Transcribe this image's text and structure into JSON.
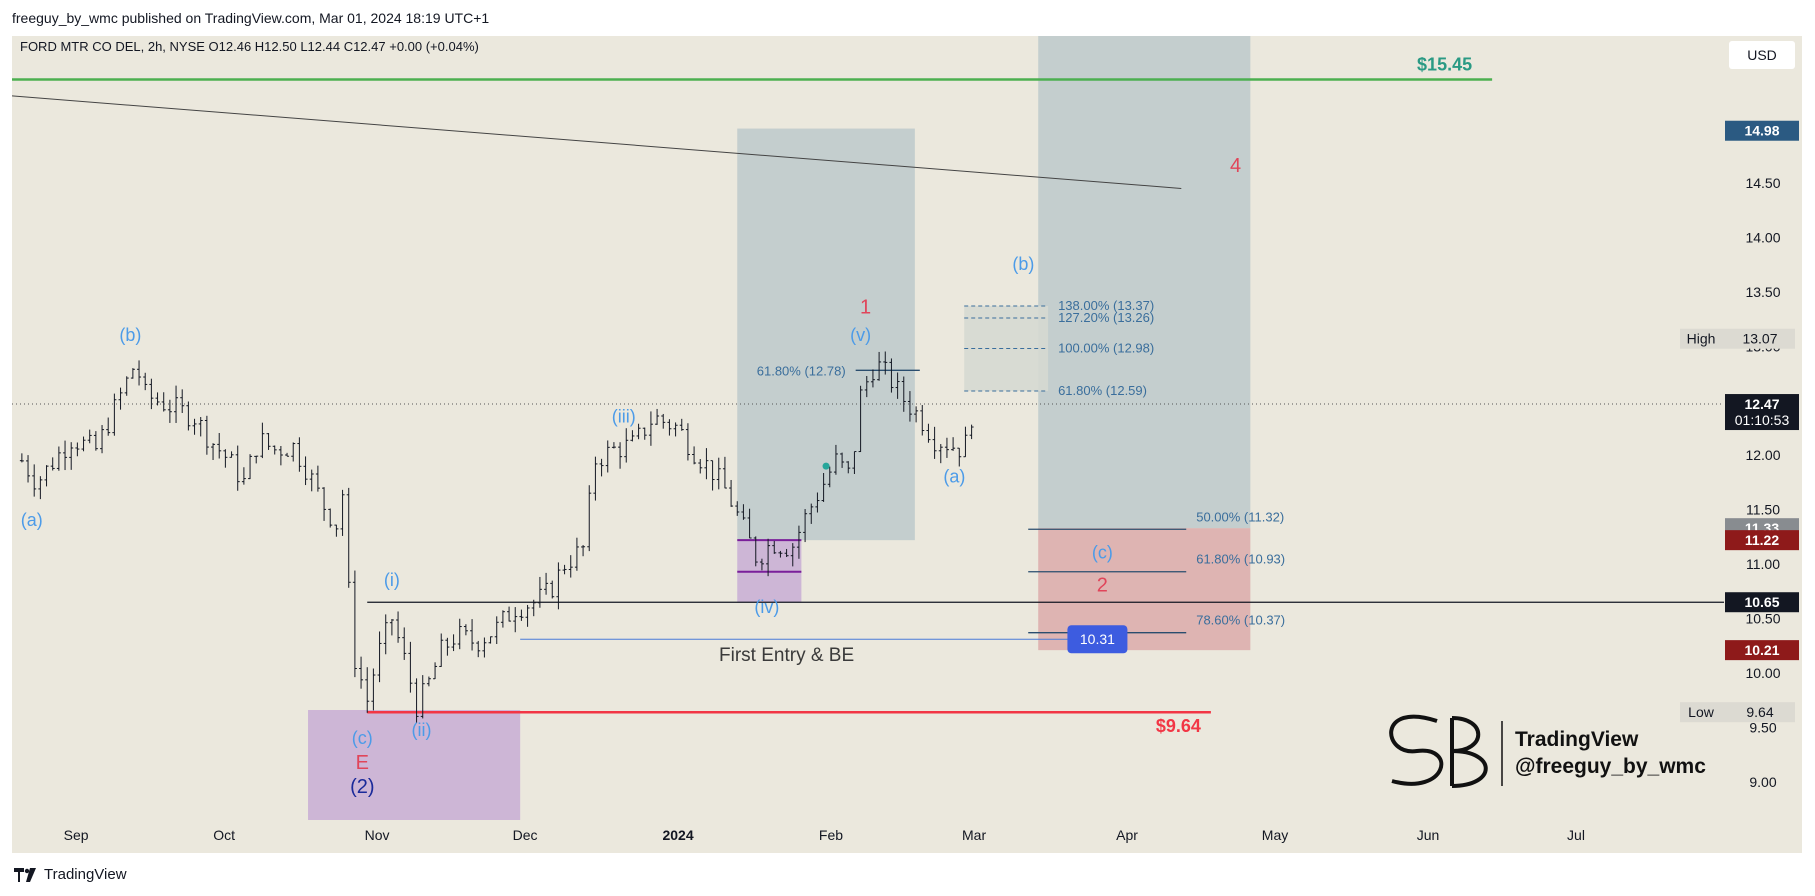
{
  "header": {
    "published": "freeguy_by_wmc published on TradingView.com, Mar 01, 2024 18:19 UTC+1"
  },
  "footer": {
    "brand": "TradingView"
  },
  "watermark": {
    "line1": "TradingView",
    "line2": "@freeguy_by_wmc"
  },
  "colors": {
    "background": "#ebe8dd",
    "candle": "#131722",
    "green_level": "#4caf50",
    "red_level": "#f23645",
    "wave_blue": "#4c9be8",
    "wave_red": "#e0455a",
    "fib_text": "#3a6e9c",
    "zone_grey": "#b7c5c8",
    "zone_purple": "#c5a9d4",
    "zone_red": "#d9a3a3",
    "entry_box": "#3d5ce0",
    "price_badge": "#131722",
    "dark_red_badge": "#8e1a1a",
    "price_badge_blue": "#2b5a82"
  },
  "chart_data": {
    "type": "candlestick",
    "symbol_line": "FORD MTR CO DEL, 2h, NYSE  O12.46  H12.50  L12.44  C12.47  +0.00 (+0.04%)",
    "currency": "USD",
    "x_axis": {
      "labels": [
        "Sep",
        "Oct",
        "Nov",
        "Dec",
        "2024",
        "Feb",
        "Mar",
        "Apr",
        "May",
        "Jun",
        "Jul"
      ],
      "dates": [
        "2023-09-01",
        "2023-10-01",
        "2023-11-01",
        "2023-12-01",
        "2024-01-01",
        "2024-02-01",
        "2024-03-01",
        "2024-04-01",
        "2024-05-01",
        "2024-06-01",
        "2024-07-01"
      ],
      "range": [
        "2023-08-19",
        "2024-07-31"
      ]
    },
    "y_axis": {
      "ticks": [
        "9.00",
        "9.50",
        "10.00",
        "10.50",
        "11.00",
        "11.50",
        "12.00",
        "12.50",
        "13.00",
        "13.50",
        "14.00",
        "14.50"
      ],
      "range": [
        8.65,
        15.85
      ]
    },
    "price_path": [
      [
        "2023-08-21",
        11.95
      ],
      [
        "2023-08-24",
        11.75
      ],
      [
        "2023-08-28",
        11.98
      ],
      [
        "2023-08-31",
        12.15
      ],
      [
        "2023-09-05",
        12.05
      ],
      [
        "2023-09-09",
        12.45
      ],
      [
        "2023-09-13",
        12.85
      ],
      [
        "2023-09-15",
        12.55
      ],
      [
        "2023-09-20",
        12.45
      ],
      [
        "2023-09-25",
        12.35
      ],
      [
        "2023-09-28",
        12.15
      ],
      [
        "2023-10-02",
        11.95
      ],
      [
        "2023-10-05",
        11.75
      ],
      [
        "2023-10-08",
        12.15
      ],
      [
        "2023-10-11",
        12.05
      ],
      [
        "2023-10-15",
        12.08
      ],
      [
        "2023-10-18",
        11.85
      ],
      [
        "2023-10-21",
        11.55
      ],
      [
        "2023-10-24",
        11.35
      ],
      [
        "2023-10-25",
        11.65
      ],
      [
        "2023-10-27",
        10.2
      ],
      [
        "2023-10-30",
        9.75
      ],
      [
        "2023-11-01",
        10.15
      ],
      [
        "2023-11-04",
        10.5
      ],
      [
        "2023-11-07",
        10.05
      ],
      [
        "2023-11-09",
        9.7
      ],
      [
        "2023-11-11",
        9.85
      ],
      [
        "2023-11-14",
        10.2
      ],
      [
        "2023-11-17",
        10.35
      ],
      [
        "2023-11-21",
        10.28
      ],
      [
        "2023-11-25",
        10.4
      ],
      [
        "2023-11-29",
        10.6
      ],
      [
        "2023-12-03",
        10.65
      ],
      [
        "2023-12-06",
        10.75
      ],
      [
        "2023-12-09",
        11.0
      ],
      [
        "2023-12-13",
        11.15
      ],
      [
        "2023-12-15",
        11.95
      ],
      [
        "2023-12-19",
        12.05
      ],
      [
        "2023-12-23",
        12.1
      ],
      [
        "2023-12-27",
        12.35
      ],
      [
        "2024-01-01",
        12.25
      ],
      [
        "2024-01-04",
        12.05
      ],
      [
        "2024-01-08",
        11.85
      ],
      [
        "2024-01-11",
        11.65
      ],
      [
        "2024-01-15",
        11.25
      ],
      [
        "2024-01-17",
        11.05
      ],
      [
        "2024-01-20",
        11.2
      ],
      [
        "2024-01-24",
        11.15
      ],
      [
        "2024-01-27",
        11.45
      ],
      [
        "2024-01-30",
        11.7
      ],
      [
        "2024-02-02",
        11.95
      ],
      [
        "2024-02-05",
        11.8
      ],
      [
        "2024-02-07",
        12.55
      ],
      [
        "2024-02-10",
        12.85
      ],
      [
        "2024-02-13",
        12.7
      ],
      [
        "2024-02-15",
        12.55
      ],
      [
        "2024-02-19",
        12.35
      ],
      [
        "2024-02-22",
        12.15
      ],
      [
        "2024-02-25",
        12.1
      ],
      [
        "2024-02-28",
        12.05
      ],
      [
        "2024-03-01",
        12.47
      ]
    ],
    "levels": [
      {
        "id": "target",
        "price": 15.45,
        "label": "$15.45",
        "color": "green",
        "from": "2023-08-19",
        "to": "2024-06-14"
      },
      {
        "id": "stop",
        "price": 9.64,
        "label": "$9.64",
        "color": "red",
        "from": "2023-10-30",
        "to": "2024-04-18"
      },
      {
        "id": "support",
        "price": 10.65,
        "color": "black",
        "from": "2023-10-30",
        "to": "2024-07-31"
      },
      {
        "id": "current",
        "price": 12.47,
        "color": "dotted",
        "from": "2023-08-19",
        "to": "2024-07-31"
      }
    ],
    "trendline": {
      "from": [
        "2023-08-19",
        15.3
      ],
      "to": [
        "2024-04-12",
        14.45
      ]
    },
    "zones": [
      {
        "id": "low-zone",
        "color": "purple",
        "from": "2023-10-18",
        "to": "2023-11-30",
        "top": 9.66,
        "bottom": 8.65
      },
      {
        "id": "iv-zone",
        "color": "purple",
        "from": "2024-01-13",
        "to": "2024-01-26",
        "top": 11.22,
        "bottom": 10.65
      },
      {
        "id": "rect-1",
        "color": "grey",
        "from": "2024-01-13",
        "to": "2024-02-18",
        "top": 15.0,
        "bottom": 11.22
      },
      {
        "id": "rect-2",
        "color": "grey",
        "from": "2024-03-14",
        "to": "2024-04-26",
        "top": 15.85,
        "bottom": 11.33
      },
      {
        "id": "red-zone",
        "color": "red",
        "from": "2024-03-14",
        "to": "2024-04-26",
        "top": 11.33,
        "bottom": 10.21
      },
      {
        "id": "fib-up-box",
        "color": "lightgrey",
        "from": "2024-02-28",
        "to": "2024-03-16",
        "top": 13.37,
        "bottom": 12.59
      }
    ],
    "fib_ext": [
      {
        "label": "138.00% (13.37)",
        "price": 13.37
      },
      {
        "label": "127.20% (13.26)",
        "price": 13.26
      },
      {
        "label": "100.00% (12.98)",
        "price": 12.98
      },
      {
        "label": "61.80% (12.59)",
        "price": 12.59
      }
    ],
    "fib_ret": [
      {
        "label": "50.00% (11.32)",
        "price": 11.32
      },
      {
        "label": "61.80% (10.93)",
        "price": 10.93
      },
      {
        "label": "78.60% (10.37)",
        "price": 10.37
      }
    ],
    "fib_wave1": {
      "label": "61.80% (12.78)",
      "price": 12.78
    },
    "entry": {
      "label": "First Entry & BE",
      "price": 10.31,
      "badge": "10.31",
      "from": "2023-11-30",
      "to": "2024-03-26"
    },
    "purple_lines": [
      {
        "price": 11.22
      },
      {
        "price": 10.93
      }
    ],
    "waves_blue": [
      {
        "label": "(a)",
        "date": "2023-08-23",
        "price": 11.35
      },
      {
        "label": "(b)",
        "date": "2023-09-12",
        "price": 13.05
      },
      {
        "label": "(i)",
        "date": "2023-11-04",
        "price": 10.8
      },
      {
        "label": "(c)",
        "date": "2023-10-29",
        "price": 9.35
      },
      {
        "label": "(ii)",
        "date": "2023-11-10",
        "price": 9.42
      },
      {
        "label": "(iii)",
        "date": "2023-12-21",
        "price": 12.3
      },
      {
        "label": "(iv)",
        "date": "2024-01-19",
        "price": 10.55
      },
      {
        "label": "(v)",
        "date": "2024-02-07",
        "price": 13.05
      },
      {
        "label": "(a)",
        "date": "2024-02-26",
        "price": 11.75
      },
      {
        "label": "(b)",
        "date": "2024-03-11",
        "price": 13.7
      },
      {
        "label": "(c)",
        "date": "2024-03-27",
        "price": 11.05
      }
    ],
    "waves_red": [
      {
        "label": "E",
        "date": "2023-10-29",
        "price": 9.12
      },
      {
        "label": "1",
        "date": "2024-02-08",
        "price": 13.3
      },
      {
        "label": "2",
        "date": "2024-03-27",
        "price": 10.75
      },
      {
        "label": "4",
        "date": "2024-04-23",
        "price": 14.6
      }
    ],
    "waves_navy": [
      {
        "label": "(2)",
        "date": "2023-10-29",
        "price": 8.9
      }
    ],
    "price_tags": [
      {
        "text": "14.98",
        "price": 14.98,
        "style": "blue"
      },
      {
        "text": "12.47",
        "price": 12.47,
        "style": "dark",
        "sub": "01:10:53"
      },
      {
        "text": "11.33",
        "price": 11.33,
        "style": "grey"
      },
      {
        "text": "11.22",
        "price": 11.22,
        "style": "darkred"
      },
      {
        "text": "10.65",
        "price": 10.65,
        "style": "dark"
      },
      {
        "text": "10.21",
        "price": 10.21,
        "style": "darkred"
      }
    ],
    "high": {
      "label": "High",
      "value": "13.07",
      "price": 13.07
    },
    "low": {
      "label": "Low",
      "value": "9.64",
      "price": 9.64
    }
  }
}
